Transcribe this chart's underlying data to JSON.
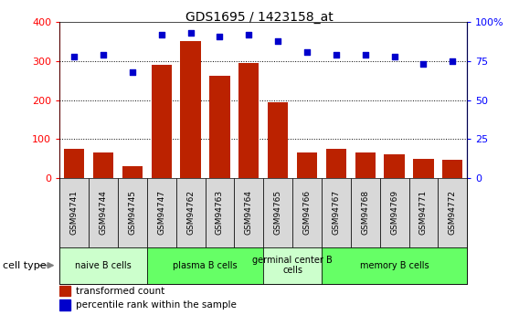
{
  "title": "GDS1695 / 1423158_at",
  "samples": [
    "GSM94741",
    "GSM94744",
    "GSM94745",
    "GSM94747",
    "GSM94762",
    "GSM94763",
    "GSM94764",
    "GSM94765",
    "GSM94766",
    "GSM94767",
    "GSM94768",
    "GSM94769",
    "GSM94771",
    "GSM94772"
  ],
  "bar_values": [
    75,
    65,
    30,
    290,
    350,
    262,
    295,
    195,
    65,
    75,
    65,
    60,
    48,
    46
  ],
  "dot_values": [
    78,
    79,
    68,
    92,
    93,
    91,
    92,
    88,
    81,
    79,
    79,
    78,
    73,
    75
  ],
  "bar_color": "#bb2200",
  "dot_color": "#0000cc",
  "ylim_left": [
    0,
    400
  ],
  "ylim_right": [
    0,
    100
  ],
  "yticks_left": [
    0,
    100,
    200,
    300,
    400
  ],
  "ytick_labels_right": [
    "0",
    "25",
    "50",
    "75",
    "100%"
  ],
  "grid_values": [
    100,
    200,
    300
  ],
  "cell_groups": [
    {
      "label": "naive B cells",
      "start": 0,
      "end": 3,
      "color": "#ccffcc"
    },
    {
      "label": "plasma B cells",
      "start": 3,
      "end": 7,
      "color": "#66ff66"
    },
    {
      "label": "germinal center B\ncells",
      "start": 7,
      "end": 9,
      "color": "#ccffcc"
    },
    {
      "label": "memory B cells",
      "start": 9,
      "end": 14,
      "color": "#66ff66"
    }
  ],
  "legend_bar_label": "transformed count",
  "legend_dot_label": "percentile rank within the sample",
  "cell_type_label": "cell type",
  "sample_bg": "#d8d8d8",
  "plot_bg": "#ffffff",
  "fig_bg": "#ffffff"
}
